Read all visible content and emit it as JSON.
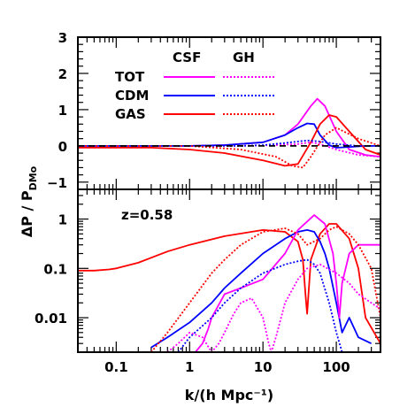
{
  "chart_data": [
    {
      "type": "line",
      "panel": "top",
      "scale": {
        "x": "log",
        "y": "linear"
      },
      "xlim": [
        0.03,
        400
      ],
      "ylim": [
        -1.2,
        3
      ],
      "yticks": [
        -1,
        0,
        1,
        2,
        3
      ],
      "ytick_labels": [
        "−1",
        "0",
        "1",
        "2",
        "3"
      ],
      "legend": {
        "headers": [
          "CSF",
          "GH"
        ],
        "rows": [
          {
            "label": "TOT",
            "color": "#ff00ff"
          },
          {
            "label": "CDM",
            "color": "#0000ff"
          },
          {
            "label": "GAS",
            "color": "#ff0000"
          }
        ]
      },
      "series": [
        {
          "name": "TOT",
          "style": "solid",
          "color": "#ff00ff",
          "x": [
            0.03,
            1,
            3,
            10,
            20,
            30,
            45,
            55,
            70,
            100,
            150,
            250,
            400
          ],
          "y": [
            0,
            0,
            0.02,
            0.1,
            0.3,
            0.6,
            1.1,
            1.3,
            1.1,
            0.4,
            -0.1,
            -0.25,
            -0.3
          ]
        },
        {
          "name": "CDM",
          "style": "solid",
          "color": "#0000ff",
          "x": [
            0.03,
            1,
            3,
            10,
            20,
            30,
            40,
            50,
            60,
            80,
            100,
            150,
            250,
            400
          ],
          "y": [
            0,
            0,
            0.02,
            0.1,
            0.3,
            0.5,
            0.62,
            0.6,
            0.3,
            0.02,
            -0.05,
            -0.03,
            0,
            0
          ]
        },
        {
          "name": "GAS",
          "style": "solid",
          "color": "#ff0000",
          "x": [
            0.03,
            0.3,
            1,
            3,
            10,
            20,
            30,
            45,
            60,
            80,
            100,
            150,
            250,
            400
          ],
          "y": [
            -0.05,
            -0.05,
            -0.1,
            -0.2,
            -0.4,
            -0.55,
            -0.5,
            0.1,
            0.6,
            0.85,
            0.8,
            0.4,
            -0.1,
            -0.25
          ]
        },
        {
          "name": "TOT",
          "style": "dotted",
          "color": "#ff00ff",
          "x": [
            0.03,
            1,
            5,
            15,
            30,
            45,
            60,
            100,
            200,
            400
          ],
          "y": [
            0,
            0,
            0,
            0.02,
            0.05,
            0.1,
            0.05,
            -0.1,
            -0.25,
            -0.3
          ]
        },
        {
          "name": "CDM",
          "style": "dotted",
          "color": "#0000ff",
          "x": [
            0.03,
            1,
            5,
            10,
            20,
            40,
            60,
            100,
            200,
            400
          ],
          "y": [
            0,
            0,
            0,
            0.02,
            0.08,
            0.15,
            0.12,
            0.05,
            0,
            0
          ]
        },
        {
          "name": "GAS",
          "style": "dotted",
          "color": "#ff0000",
          "x": [
            0.03,
            1,
            5,
            15,
            25,
            35,
            45,
            70,
            100,
            200,
            400
          ],
          "y": [
            0,
            0,
            -0.1,
            -0.3,
            -0.55,
            -0.6,
            -0.3,
            0.3,
            0.5,
            0.2,
            0
          ]
        },
        {
          "name": "",
          "style": "dashed",
          "color": "#000000",
          "x": [
            0.03,
            400
          ],
          "y": [
            0,
            0
          ]
        }
      ]
    },
    {
      "type": "line",
      "panel": "bottom",
      "scale": {
        "x": "log",
        "y": "log"
      },
      "xlim": [
        0.03,
        400
      ],
      "ylim": [
        0.002,
        4
      ],
      "yticks": [
        0.01,
        0.1,
        1
      ],
      "ytick_labels": [
        "0.01",
        "0.1",
        "1"
      ],
      "xticks": [
        0.1,
        1,
        10,
        100
      ],
      "xtick_labels": [
        "0.1",
        "1",
        "10",
        "100"
      ],
      "annotation": "z=0.58",
      "xlabel": "k/(h Mpc⁻¹)",
      "ylabel_main": "ΔP / P",
      "ylabel_sub": "DMo",
      "series": [
        {
          "name": "GAS",
          "style": "solid",
          "color": "#ff0000",
          "x": [
            0.03,
            0.05,
            0.08,
            0.1,
            0.2,
            0.5,
            1,
            3,
            10,
            20,
            30,
            35,
            38,
            40,
            45,
            60,
            80,
            100,
            150,
            200,
            250,
            400
          ],
          "y": [
            0.09,
            0.09,
            0.095,
            0.1,
            0.13,
            0.22,
            0.3,
            0.45,
            0.6,
            0.55,
            0.35,
            0.15,
            0.03,
            0.012,
            0.15,
            0.5,
            0.8,
            0.8,
            0.4,
            0.1,
            0.01,
            0.003
          ]
        },
        {
          "name": "CDM",
          "style": "solid",
          "color": "#0000ff",
          "x": [
            0.3,
            0.5,
            1,
            2,
            3,
            5,
            10,
            20,
            30,
            40,
            50,
            60,
            70,
            80,
            100,
            120,
            150,
            200,
            300
          ],
          "y": [
            0.0025,
            0.004,
            0.008,
            0.02,
            0.04,
            0.08,
            0.2,
            0.4,
            0.55,
            0.6,
            0.55,
            0.35,
            0.2,
            0.1,
            0.02,
            0.005,
            0.01,
            0.004,
            0.003
          ]
        },
        {
          "name": "TOT",
          "style": "solid",
          "color": "#ff00ff",
          "x": [
            1.2,
            1.5,
            1.8,
            2,
            3,
            5,
            10,
            20,
            30,
            50,
            70,
            90,
            100,
            110,
            120,
            150,
            200,
            300,
            400
          ],
          "y": [
            0.002,
            0.003,
            0.006,
            0.01,
            0.03,
            0.04,
            0.06,
            0.2,
            0.6,
            1.2,
            0.8,
            0.2,
            0.05,
            0.01,
            0.05,
            0.2,
            0.3,
            0.3,
            0.3
          ]
        },
        {
          "name": "GAS",
          "style": "dotted",
          "color": "#ff0000",
          "x": [
            0.3,
            0.5,
            1,
            2,
            3,
            5,
            10,
            20,
            30,
            40,
            60,
            80,
            100,
            150,
            200,
            300,
            400
          ],
          "y": [
            0.002,
            0.005,
            0.02,
            0.08,
            0.15,
            0.3,
            0.55,
            0.65,
            0.5,
            0.3,
            0.4,
            0.6,
            0.7,
            0.5,
            0.3,
            0.1,
            0.01
          ]
        },
        {
          "name": "CDM",
          "style": "dotted",
          "color": "#0000ff",
          "x": [
            0.7,
            1,
            2,
            3,
            5,
            10,
            20,
            30,
            40,
            50,
            60,
            80,
            100,
            120
          ],
          "y": [
            0.002,
            0.004,
            0.01,
            0.02,
            0.04,
            0.08,
            0.12,
            0.14,
            0.15,
            0.12,
            0.08,
            0.02,
            0.005,
            0.002
          ]
        },
        {
          "name": "TOT",
          "style": "dotted",
          "color": "#ff00ff",
          "x": [
            0.5,
            0.7,
            1,
            1.5,
            2,
            2.5,
            3,
            4,
            5,
            7,
            10,
            12,
            13,
            15,
            20,
            30,
            40,
            60,
            100,
            150,
            200,
            300,
            400
          ],
          "y": [
            0.002,
            0.003,
            0.005,
            0.004,
            0.002,
            0.003,
            0.005,
            0.012,
            0.02,
            0.025,
            0.01,
            0.003,
            0.002,
            0.004,
            0.02,
            0.06,
            0.1,
            0.12,
            0.08,
            0.05,
            0.03,
            0.02,
            0.015
          ]
        }
      ]
    }
  ]
}
